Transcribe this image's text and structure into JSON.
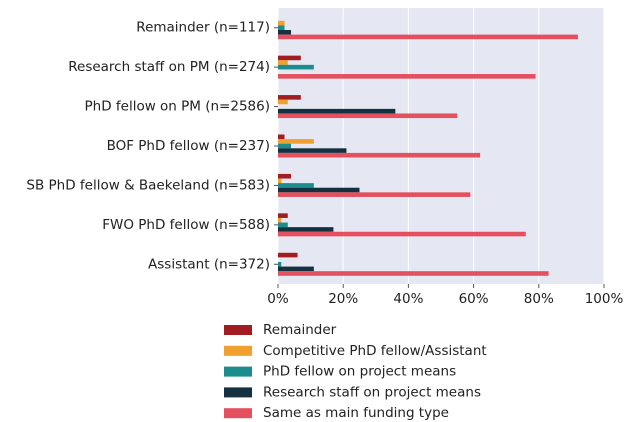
{
  "chart_data": {
    "type": "bar",
    "orientation": "horizontal",
    "categories": [
      "Remainder (n=117)",
      "Research staff on PM (n=274)",
      "PhD fellow on PM (n=2586)",
      "BOF PhD fellow (n=237)",
      "SB PhD fellow & Baekeland (n=583)",
      "FWO PhD fellow (n=588)",
      "Assistant (n=372)"
    ],
    "series": [
      {
        "name": "Remainder",
        "color": "#a11d21",
        "values": [
          0,
          7,
          7,
          2,
          4,
          3,
          6
        ]
      },
      {
        "name": "Competitive PhD fellow/Assistant",
        "color": "#f0a02e",
        "values": [
          2,
          3,
          3,
          11,
          1,
          1,
          0
        ]
      },
      {
        "name": "PhD fellow on project means",
        "color": "#1c8c8c",
        "values": [
          2,
          11,
          0,
          4,
          11,
          3,
          1
        ]
      },
      {
        "name": "Research staff on project means",
        "color": "#133140",
        "values": [
          4,
          0,
          36,
          21,
          25,
          17,
          11
        ]
      },
      {
        "name": "Same as main funding type",
        "color": "#e4505e",
        "values": [
          92,
          79,
          55,
          62,
          59,
          76,
          83
        ]
      }
    ],
    "xlim": [
      0,
      100
    ],
    "xticks": [
      {
        "value": 0,
        "label": "0%"
      },
      {
        "value": 20,
        "label": "20%"
      },
      {
        "value": 40,
        "label": "40%"
      },
      {
        "value": 60,
        "label": "60%"
      },
      {
        "value": 80,
        "label": "80%"
      },
      {
        "value": 100,
        "label": "100%"
      }
    ],
    "grid": true,
    "background": "#e5e8f3"
  }
}
